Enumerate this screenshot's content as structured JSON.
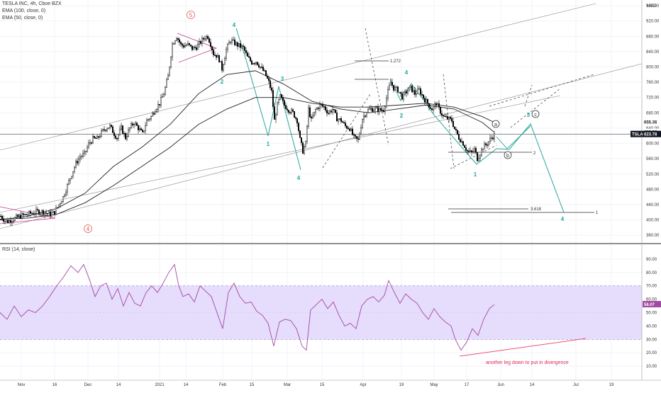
{
  "header": {
    "symbol_line": "TESLA INC, 4h, Cboe BZX",
    "indicators": [
      "EMA (100, close, 0)",
      "EMA (50, close, 0)"
    ],
    "currency": "USD"
  },
  "rsi": {
    "label": "RSI (14, close)",
    "value_label": "56.07"
  },
  "price_tags": {
    "ticker": "TSLA",
    "last": "623.78",
    "ema100": "655.36",
    "ema50": "629.38"
  },
  "annotations": {
    "fib_1272": "1.272",
    "fib_3618": "3.618",
    "fib_2": "2",
    "fib_1": "1",
    "waves": [
      "5",
      "4",
      "2",
      "1",
      "3",
      "4",
      "5",
      "2",
      "1",
      "3",
      "4",
      "5",
      "a",
      "b",
      "c"
    ],
    "note": "another leg down to put in divergence"
  },
  "colors": {
    "candle": "#000000",
    "teal": "#26a69a",
    "wave_red": "#e0605a",
    "rsi_band": "#e6dcfb",
    "rsi_line": "#a349a4",
    "div_line": "#f05078",
    "note": "#e0245a"
  },
  "chart_data": [
    {
      "type": "candlestick",
      "title": "TESLA INC, 4h, Cboe BZX",
      "x_tick_labels": [
        "Nov",
        "16",
        "Dec",
        "14",
        "2021",
        "14",
        "Feb",
        "15",
        "Mar",
        "15",
        "Apr",
        "19",
        "May",
        "17",
        "Jun",
        "14",
        "Jul",
        "19"
      ],
      "y_axis_ticks": [
        360,
        400,
        440,
        480,
        520,
        560,
        600,
        640,
        680,
        720,
        760,
        800,
        840,
        880,
        920,
        960
      ],
      "ylim": [
        340,
        975
      ],
      "close_path": [
        {
          "t": 0,
          "v": 410
        },
        {
          "t": 6,
          "v": 398
        },
        {
          "t": 10,
          "v": 396
        },
        {
          "t": 14,
          "v": 400
        },
        {
          "t": 18,
          "v": 402
        },
        {
          "t": 24,
          "v": 408
        },
        {
          "t": 28,
          "v": 410
        },
        {
          "t": 32,
          "v": 412
        },
        {
          "t": 36,
          "v": 414
        },
        {
          "t": 40,
          "v": 416
        },
        {
          "t": 44,
          "v": 418
        },
        {
          "t": 48,
          "v": 420
        },
        {
          "t": 52,
          "v": 422
        },
        {
          "t": 56,
          "v": 422
        },
        {
          "t": 60,
          "v": 421
        },
        {
          "t": 64,
          "v": 418
        },
        {
          "t": 70,
          "v": 415
        },
        {
          "t": 76,
          "v": 420
        },
        {
          "t": 82,
          "v": 440
        },
        {
          "t": 88,
          "v": 460
        },
        {
          "t": 94,
          "v": 490
        },
        {
          "t": 100,
          "v": 520
        },
        {
          "t": 106,
          "v": 548
        },
        {
          "t": 112,
          "v": 565
        },
        {
          "t": 118,
          "v": 572
        },
        {
          "t": 124,
          "v": 598
        },
        {
          "t": 130,
          "v": 612
        },
        {
          "t": 136,
          "v": 612
        },
        {
          "t": 142,
          "v": 628
        },
        {
          "t": 148,
          "v": 640
        },
        {
          "t": 154,
          "v": 645
        },
        {
          "t": 160,
          "v": 625
        },
        {
          "t": 164,
          "v": 615
        },
        {
          "t": 170,
          "v": 640
        },
        {
          "t": 176,
          "v": 615
        },
        {
          "t": 182,
          "v": 640
        },
        {
          "t": 188,
          "v": 655
        },
        {
          "t": 194,
          "v": 640
        },
        {
          "t": 200,
          "v": 625
        },
        {
          "t": 206,
          "v": 660
        },
        {
          "t": 212,
          "v": 670
        },
        {
          "t": 218,
          "v": 690
        },
        {
          "t": 224,
          "v": 705
        },
        {
          "t": 230,
          "v": 730
        },
        {
          "t": 236,
          "v": 775
        },
        {
          "t": 242,
          "v": 860
        },
        {
          "t": 248,
          "v": 880
        },
        {
          "t": 254,
          "v": 858
        },
        {
          "t": 258,
          "v": 855
        },
        {
          "t": 264,
          "v": 858
        },
        {
          "t": 270,
          "v": 848
        },
        {
          "t": 276,
          "v": 852
        },
        {
          "t": 282,
          "v": 865
        },
        {
          "t": 288,
          "v": 878
        },
        {
          "t": 292,
          "v": 880
        },
        {
          "t": 296,
          "v": 860
        },
        {
          "t": 300,
          "v": 835
        },
        {
          "t": 304,
          "v": 830
        },
        {
          "t": 308,
          "v": 820
        },
        {
          "t": 312,
          "v": 795
        },
        {
          "t": 318,
          "v": 845
        },
        {
          "t": 324,
          "v": 870
        },
        {
          "t": 330,
          "v": 862
        },
        {
          "t": 336,
          "v": 855
        },
        {
          "t": 342,
          "v": 850
        },
        {
          "t": 348,
          "v": 825
        },
        {
          "t": 354,
          "v": 812
        },
        {
          "t": 360,
          "v": 815
        },
        {
          "t": 366,
          "v": 800
        },
        {
          "t": 372,
          "v": 785
        },
        {
          "t": 378,
          "v": 760
        },
        {
          "t": 382,
          "v": 735
        },
        {
          "t": 386,
          "v": 660
        },
        {
          "t": 390,
          "v": 700
        },
        {
          "t": 394,
          "v": 722
        },
        {
          "t": 400,
          "v": 700
        },
        {
          "t": 406,
          "v": 688
        },
        {
          "t": 412,
          "v": 680
        },
        {
          "t": 418,
          "v": 660
        },
        {
          "t": 422,
          "v": 610
        },
        {
          "t": 426,
          "v": 580
        },
        {
          "t": 430,
          "v": 600
        },
        {
          "t": 434,
          "v": 690
        },
        {
          "t": 438,
          "v": 660
        },
        {
          "t": 444,
          "v": 688
        },
        {
          "t": 450,
          "v": 700
        },
        {
          "t": 456,
          "v": 695
        },
        {
          "t": 462,
          "v": 680
        },
        {
          "t": 468,
          "v": 690
        },
        {
          "t": 474,
          "v": 665
        },
        {
          "t": 480,
          "v": 660
        },
        {
          "t": 486,
          "v": 645
        },
        {
          "t": 492,
          "v": 640
        },
        {
          "t": 498,
          "v": 615
        },
        {
          "t": 504,
          "v": 608
        },
        {
          "t": 510,
          "v": 665
        },
        {
          "t": 516,
          "v": 685
        },
        {
          "t": 522,
          "v": 690
        },
        {
          "t": 528,
          "v": 690
        },
        {
          "t": 534,
          "v": 687
        },
        {
          "t": 540,
          "v": 688
        },
        {
          "t": 546,
          "v": 735
        },
        {
          "t": 550,
          "v": 760
        },
        {
          "t": 554,
          "v": 745
        },
        {
          "t": 560,
          "v": 740
        },
        {
          "t": 566,
          "v": 722
        },
        {
          "t": 572,
          "v": 735
        },
        {
          "t": 578,
          "v": 745
        },
        {
          "t": 584,
          "v": 730
        },
        {
          "t": 590,
          "v": 740
        },
        {
          "t": 596,
          "v": 720
        },
        {
          "t": 602,
          "v": 705
        },
        {
          "t": 608,
          "v": 690
        },
        {
          "t": 614,
          "v": 705
        },
        {
          "t": 618,
          "v": 690
        },
        {
          "t": 624,
          "v": 670
        },
        {
          "t": 630,
          "v": 665
        },
        {
          "t": 636,
          "v": 660
        },
        {
          "t": 640,
          "v": 638
        },
        {
          "t": 646,
          "v": 615
        },
        {
          "t": 652,
          "v": 600
        },
        {
          "t": 658,
          "v": 580
        },
        {
          "t": 664,
          "v": 575
        },
        {
          "t": 668,
          "v": 585
        },
        {
          "t": 672,
          "v": 560
        },
        {
          "t": 676,
          "v": 575
        },
        {
          "t": 680,
          "v": 590
        },
        {
          "t": 686,
          "v": 600
        },
        {
          "t": 692,
          "v": 615
        },
        {
          "t": 697,
          "v": 624
        }
      ],
      "ema_50": [
        {
          "t": 0,
          "v": 400
        },
        {
          "t": 40,
          "v": 410
        },
        {
          "t": 80,
          "v": 430
        },
        {
          "t": 120,
          "v": 470
        },
        {
          "t": 160,
          "v": 540
        },
        {
          "t": 200,
          "v": 590
        },
        {
          "t": 240,
          "v": 650
        },
        {
          "t": 280,
          "v": 730
        },
        {
          "t": 320,
          "v": 780
        },
        {
          "t": 360,
          "v": 790
        },
        {
          "t": 400,
          "v": 755
        },
        {
          "t": 440,
          "v": 710
        },
        {
          "t": 480,
          "v": 690
        },
        {
          "t": 520,
          "v": 680
        },
        {
          "t": 560,
          "v": 690
        },
        {
          "t": 600,
          "v": 700
        },
        {
          "t": 640,
          "v": 690
        },
        {
          "t": 680,
          "v": 655
        },
        {
          "t": 697,
          "v": 629
        }
      ],
      "ema_100": [
        {
          "t": 0,
          "v": 402
        },
        {
          "t": 40,
          "v": 405
        },
        {
          "t": 80,
          "v": 415
        },
        {
          "t": 120,
          "v": 445
        },
        {
          "t": 160,
          "v": 490
        },
        {
          "t": 200,
          "v": 540
        },
        {
          "t": 240,
          "v": 590
        },
        {
          "t": 280,
          "v": 650
        },
        {
          "t": 320,
          "v": 690
        },
        {
          "t": 360,
          "v": 720
        },
        {
          "t": 400,
          "v": 720
        },
        {
          "t": 440,
          "v": 705
        },
        {
          "t": 480,
          "v": 695
        },
        {
          "t": 520,
          "v": 695
        },
        {
          "t": 560,
          "v": 700
        },
        {
          "t": 600,
          "v": 705
        },
        {
          "t": 640,
          "v": 695
        },
        {
          "t": 680,
          "v": 670
        },
        {
          "t": 697,
          "v": 655
        }
      ],
      "last_price": 623.78
    },
    {
      "type": "line",
      "title": "RSI (14, close)",
      "y_axis_ticks": [
        10,
        20,
        30,
        40,
        50,
        60,
        70,
        80,
        90
      ],
      "ylim": [
        0,
        100
      ],
      "band": [
        30,
        70
      ],
      "series": [
        {
          "values": [
            {
              "t": 0,
              "v": 50
            },
            {
              "t": 10,
              "v": 45
            },
            {
              "t": 20,
              "v": 55
            },
            {
              "t": 30,
              "v": 47
            },
            {
              "t": 40,
              "v": 52
            },
            {
              "t": 50,
              "v": 50
            },
            {
              "t": 60,
              "v": 55
            },
            {
              "t": 70,
              "v": 62
            },
            {
              "t": 80,
              "v": 70
            },
            {
              "t": 90,
              "v": 77
            },
            {
              "t": 100,
              "v": 85
            },
            {
              "t": 110,
              "v": 80
            },
            {
              "t": 118,
              "v": 86
            },
            {
              "t": 126,
              "v": 75
            },
            {
              "t": 134,
              "v": 62
            },
            {
              "t": 142,
              "v": 70
            },
            {
              "t": 150,
              "v": 72
            },
            {
              "t": 158,
              "v": 60
            },
            {
              "t": 166,
              "v": 68
            },
            {
              "t": 174,
              "v": 55
            },
            {
              "t": 182,
              "v": 65
            },
            {
              "t": 190,
              "v": 57
            },
            {
              "t": 198,
              "v": 55
            },
            {
              "t": 206,
              "v": 65
            },
            {
              "t": 214,
              "v": 70
            },
            {
              "t": 222,
              "v": 65
            },
            {
              "t": 230,
              "v": 72
            },
            {
              "t": 238,
              "v": 80
            },
            {
              "t": 246,
              "v": 86
            },
            {
              "t": 252,
              "v": 70
            },
            {
              "t": 258,
              "v": 62
            },
            {
              "t": 266,
              "v": 64
            },
            {
              "t": 274,
              "v": 58
            },
            {
              "t": 282,
              "v": 70
            },
            {
              "t": 290,
              "v": 66
            },
            {
              "t": 298,
              "v": 62
            },
            {
              "t": 306,
              "v": 50
            },
            {
              "t": 314,
              "v": 38
            },
            {
              "t": 322,
              "v": 65
            },
            {
              "t": 330,
              "v": 72
            },
            {
              "t": 338,
              "v": 62
            },
            {
              "t": 346,
              "v": 57
            },
            {
              "t": 354,
              "v": 58
            },
            {
              "t": 362,
              "v": 51
            },
            {
              "t": 370,
              "v": 48
            },
            {
              "t": 378,
              "v": 42
            },
            {
              "t": 386,
              "v": 25
            },
            {
              "t": 394,
              "v": 43
            },
            {
              "t": 402,
              "v": 45
            },
            {
              "t": 410,
              "v": 44
            },
            {
              "t": 418,
              "v": 38
            },
            {
              "t": 426,
              "v": 25
            },
            {
              "t": 432,
              "v": 22
            },
            {
              "t": 438,
              "v": 52
            },
            {
              "t": 446,
              "v": 56
            },
            {
              "t": 454,
              "v": 60
            },
            {
              "t": 462,
              "v": 53
            },
            {
              "t": 470,
              "v": 58
            },
            {
              "t": 478,
              "v": 48
            },
            {
              "t": 486,
              "v": 40
            },
            {
              "t": 494,
              "v": 42
            },
            {
              "t": 502,
              "v": 38
            },
            {
              "t": 510,
              "v": 55
            },
            {
              "t": 518,
              "v": 60
            },
            {
              "t": 526,
              "v": 62
            },
            {
              "t": 534,
              "v": 58
            },
            {
              "t": 542,
              "v": 63
            },
            {
              "t": 548,
              "v": 74
            },
            {
              "t": 556,
              "v": 65
            },
            {
              "t": 564,
              "v": 57
            },
            {
              "t": 572,
              "v": 64
            },
            {
              "t": 580,
              "v": 60
            },
            {
              "t": 588,
              "v": 57
            },
            {
              "t": 596,
              "v": 50
            },
            {
              "t": 604,
              "v": 45
            },
            {
              "t": 612,
              "v": 53
            },
            {
              "t": 620,
              "v": 47
            },
            {
              "t": 628,
              "v": 43
            },
            {
              "t": 636,
              "v": 40
            },
            {
              "t": 642,
              "v": 30
            },
            {
              "t": 650,
              "v": 22
            },
            {
              "t": 658,
              "v": 28
            },
            {
              "t": 666,
              "v": 38
            },
            {
              "t": 674,
              "v": 33
            },
            {
              "t": 682,
              "v": 45
            },
            {
              "t": 690,
              "v": 53
            },
            {
              "t": 697,
              "v": 56
            }
          ]
        }
      ],
      "last_value": 56.07
    }
  ]
}
